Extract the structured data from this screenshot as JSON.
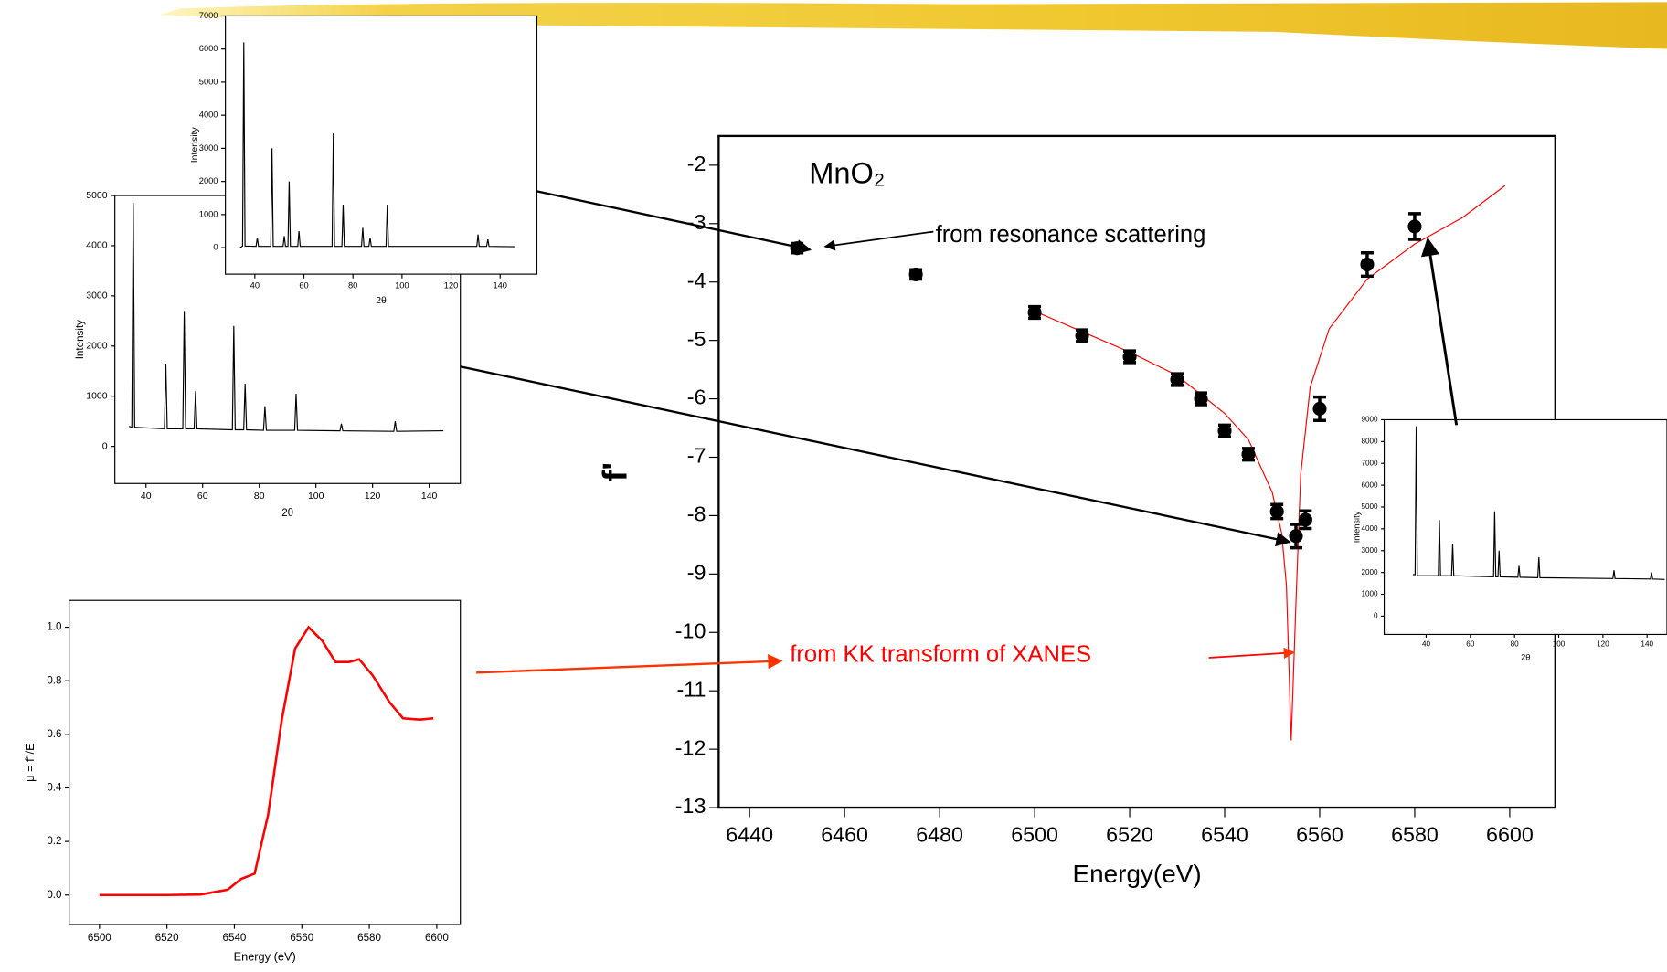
{
  "chart_data": [
    {
      "type": "scatter",
      "title": "MnO₂",
      "x_label": "Energy(eV)",
      "y_label": "f'",
      "xlim": [
        6433.5,
        6609.6
      ],
      "ylim": [
        -13,
        -1.5
      ],
      "xticks": [
        6440,
        6460,
        6480,
        6500,
        6520,
        6540,
        6560,
        6580,
        6600
      ],
      "yticks": [
        -2,
        -3,
        -4,
        -5,
        -6,
        -7,
        -8,
        -9,
        -10,
        -11,
        -12,
        -13
      ],
      "points": {
        "color": "#000000",
        "x": [
          6450,
          6475,
          6500,
          6510,
          6520,
          6530,
          6535,
          6540,
          6545,
          6551,
          6555,
          6557,
          6560,
          6570,
          6580
        ],
        "values": [
          -3.42,
          -3.87,
          -4.52,
          -4.92,
          -5.28,
          -5.67,
          -6.0,
          -6.55,
          -6.95,
          -7.93,
          -8.35,
          -8.07,
          -6.17,
          -3.7,
          -3.05
        ],
        "errors": [
          0.08,
          0.08,
          0.1,
          0.1,
          0.1,
          0.1,
          0.1,
          0.1,
          0.1,
          0.12,
          0.2,
          0.15,
          0.2,
          0.2,
          0.22
        ]
      },
      "curve": {
        "color": "#ff0000",
        "x": [
          6500,
          6510,
          6520,
          6530,
          6540,
          6545,
          6550,
          6552,
          6553,
          6554,
          6555,
          6556,
          6558,
          6562,
          6570,
          6580,
          6590,
          6599
        ],
        "values": [
          -4.5,
          -4.85,
          -5.2,
          -5.6,
          -6.25,
          -6.7,
          -7.6,
          -8.3,
          -9.2,
          -11.85,
          -9.5,
          -7.3,
          -5.8,
          -4.8,
          -3.95,
          -3.35,
          -2.9,
          -2.35
        ]
      },
      "annotations": [
        "from resonance scattering",
        "from KK transform of XANES"
      ]
    },
    {
      "type": "line",
      "x_label": "2θ",
      "y_label": "Intensity",
      "color": "#000000",
      "xlim": [
        29,
        151
      ],
      "ylim": [
        -740,
        5000
      ],
      "xticks": [
        40,
        60,
        80,
        100,
        120,
        140
      ],
      "yticks": [
        0,
        1000,
        2000,
        3000,
        4000,
        5000
      ],
      "x": [
        34,
        35,
        35.5,
        36,
        46.5,
        47,
        47.5,
        53,
        53.5,
        54,
        57,
        57.5,
        58,
        70.5,
        71,
        71.5,
        74.5,
        75,
        75.5,
        81.5,
        82,
        82.5,
        92.5,
        93,
        93.5,
        108.5,
        109,
        109.5,
        127.5,
        128,
        128.5,
        145
      ],
      "values": [
        400,
        380,
        4850,
        380,
        350,
        1650,
        350,
        350,
        2700,
        350,
        350,
        1100,
        350,
        330,
        2400,
        330,
        330,
        1250,
        330,
        320,
        800,
        320,
        320,
        1050,
        320,
        310,
        450,
        310,
        300,
        500,
        300,
        310
      ]
    },
    {
      "type": "line",
      "x_label": "2θ",
      "y_label": "Intensity",
      "color": "#000000",
      "xlim": [
        28,
        155
      ],
      "ylim": [
        -800,
        7000
      ],
      "xticks": [
        40,
        60,
        80,
        100,
        120,
        140
      ],
      "yticks": [
        0,
        1000,
        2000,
        3000,
        4000,
        5000,
        6000,
        7000
      ],
      "x": [
        34,
        35,
        35.5,
        36,
        40.5,
        41,
        41.5,
        46.5,
        47,
        47.5,
        51.5,
        52,
        52.5,
        53.5,
        54,
        54.5,
        57.5,
        58,
        58.5,
        71.5,
        72,
        72.5,
        75.5,
        76,
        76.5,
        83.5,
        84,
        84.5,
        86.5,
        87,
        87.5,
        93.5,
        94,
        94.5,
        130.5,
        131,
        131.5,
        134.5,
        135,
        135.5,
        146
      ],
      "values": [
        0,
        50,
        6200,
        50,
        40,
        300,
        40,
        40,
        3000,
        40,
        40,
        350,
        40,
        40,
        2000,
        40,
        40,
        500,
        40,
        40,
        3450,
        40,
        40,
        1300,
        40,
        40,
        600,
        40,
        40,
        300,
        40,
        40,
        1300,
        40,
        40,
        400,
        40,
        40,
        250,
        40,
        30
      ]
    },
    {
      "type": "line",
      "x_label": "2θ",
      "y_label": "Intensity",
      "color": "#000000",
      "xlim": [
        21,
        149
      ],
      "ylim": [
        -840,
        9000
      ],
      "xticks": [
        40,
        60,
        80,
        100,
        120,
        140
      ],
      "yticks": [
        0,
        1000,
        2000,
        3000,
        4000,
        5000,
        6000,
        7000,
        8000,
        9000
      ],
      "x": [
        34,
        35,
        35.5,
        36,
        45.5,
        46,
        46.5,
        51.5,
        52,
        52.5,
        70.5,
        71,
        71.5,
        72.5,
        73,
        73.5,
        81.5,
        82,
        82.5,
        90.5,
        91,
        91.5,
        124.5,
        125,
        125.5,
        141.5,
        142,
        142.5,
        148
      ],
      "values": [
        1900,
        1900,
        8700,
        1850,
        1850,
        4400,
        1850,
        1850,
        3300,
        1850,
        1800,
        4800,
        1800,
        1800,
        3000,
        1800,
        1780,
        2300,
        1780,
        1760,
        2700,
        1760,
        1720,
        2100,
        1720,
        1700,
        2000,
        1700,
        1680
      ]
    },
    {
      "type": "line",
      "x_label": "Energy (eV)",
      "y_label": "μ = f''/E",
      "color": "#ff0000",
      "xlim": [
        6491,
        6607
      ],
      "ylim": [
        -0.11,
        1.1
      ],
      "xticks": [
        6500,
        6520,
        6540,
        6560,
        6580,
        6600
      ],
      "yticks": [
        {
          "value": 0,
          "label": "0.0"
        },
        0.2,
        0.4,
        0.6,
        0.8,
        {
          "value": 1,
          "label": "1.0"
        }
      ],
      "x": [
        6500,
        6520,
        6530,
        6538,
        6542,
        6546,
        6550,
        6554,
        6558,
        6562,
        6566,
        6570,
        6574,
        6577,
        6581,
        6586,
        6590,
        6595,
        6599
      ],
      "values": [
        0,
        0,
        0.002,
        0.02,
        0.06,
        0.08,
        0.3,
        0.65,
        0.92,
        1.0,
        0.95,
        0.87,
        0.87,
        0.88,
        0.82,
        0.72,
        0.66,
        0.655,
        0.66
      ]
    }
  ]
}
